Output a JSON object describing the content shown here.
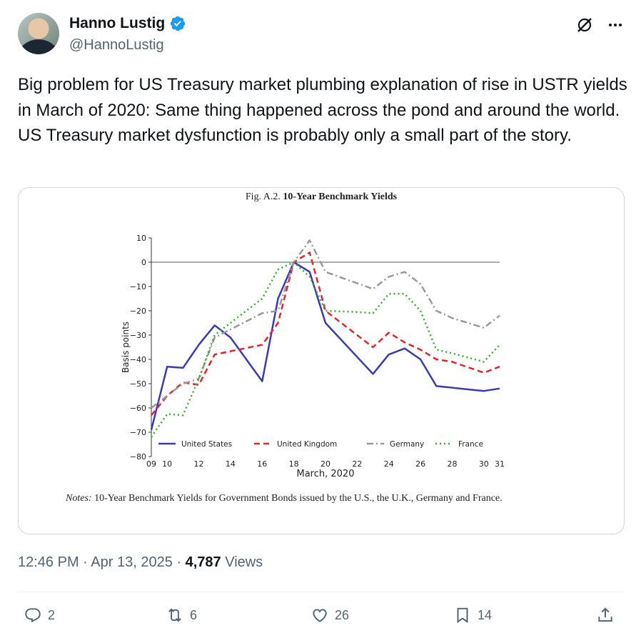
{
  "author": {
    "name": "Hanno Lustig",
    "handle": "@HannoLustig"
  },
  "tweet_text": "Big problem for US Treasury market plumbing explanation of rise in USTR yields in March of 2020: Same thing happened across the pond and around the world.  US Treasury market dysfunction is probably only a small part of the story.",
  "figure": {
    "title_prefix": "Fig. A.2.",
    "title_bold": "10-Year Benchmark Yields",
    "notes_label": "Notes:",
    "notes_text": "10-Year Benchmark Yields for Government Bonds issued by the U.S., the U.K., Germany and France."
  },
  "chart_data": {
    "type": "line",
    "xlabel": "March, 2020",
    "ylabel": "Basis points",
    "xlim": [
      9,
      31
    ],
    "ylim": [
      -80,
      10
    ],
    "x_ticks": [
      9,
      10,
      12,
      14,
      16,
      18,
      20,
      22,
      24,
      26,
      28,
      30,
      31
    ],
    "x_tick_labels": [
      "09",
      "10",
      "12",
      "14",
      "16",
      "18",
      "20",
      "22",
      "24",
      "26",
      "28",
      "30",
      "31"
    ],
    "y_ticks": [
      10,
      0,
      -10,
      -20,
      -30,
      -40,
      -50,
      -60,
      -70,
      -80
    ],
    "legend_position": "bottom",
    "series": [
      {
        "name": "United States",
        "color": "#3b3bb0",
        "dash": "solid",
        "x": [
          9,
          10,
          11,
          12,
          13,
          14,
          16,
          17,
          18,
          19,
          20,
          23,
          24,
          25,
          26,
          27,
          30,
          31
        ],
        "y": [
          -69,
          -43,
          -43.5,
          -34,
          -26,
          -31,
          -49,
          -15,
          0,
          -4,
          -25,
          -46,
          -38,
          -35.5,
          -40,
          -51,
          -53,
          -52
        ]
      },
      {
        "name": "United Kingdom",
        "color": "#e0262a",
        "dash": "dashed",
        "x": [
          9,
          10,
          11,
          12,
          13,
          16,
          17,
          18,
          19,
          20,
          23,
          24,
          25,
          26,
          27,
          28,
          30,
          31
        ],
        "y": [
          -63,
          -55,
          -49.5,
          -50.5,
          -38,
          -34,
          -25,
          0,
          4,
          -20,
          -35,
          -29,
          -33,
          -36,
          -40,
          -41,
          -45.5,
          -43
        ]
      },
      {
        "name": "Germany",
        "color": "#999999",
        "dash": "dashdot",
        "x": [
          9,
          10,
          11,
          12,
          13,
          16,
          17,
          18,
          19,
          20,
          23,
          24,
          25,
          26,
          27,
          28,
          30,
          31
        ],
        "y": [
          -60,
          -55,
          -50,
          -48,
          -31,
          -21,
          -20,
          0,
          9,
          -4,
          -11,
          -6,
          -4,
          -9,
          -20,
          -23,
          -27,
          -22
        ]
      },
      {
        "name": "France",
        "color": "#3aa832",
        "dash": "dotted",
        "x": [
          9,
          10,
          11,
          12,
          13,
          16,
          17,
          18,
          19,
          20,
          22,
          23,
          24,
          25,
          26,
          27,
          28,
          30,
          31
        ],
        "y": [
          -72,
          -62.5,
          -63,
          -48,
          -30,
          -15,
          -3,
          0,
          -6,
          -20,
          -20.5,
          -21,
          -13,
          -13,
          -20,
          -36,
          -37.5,
          -41,
          -34
        ]
      }
    ]
  },
  "meta": {
    "time": "12:46 PM",
    "sep": "·",
    "date": "Apr 13, 2025",
    "sep2": "·",
    "views_count": "4,787",
    "views_label": "Views"
  },
  "actions": {
    "replies": "2",
    "reposts": "6",
    "likes": "26",
    "bookmarks": "14"
  },
  "colors": {
    "verified": "#1d9bf0",
    "text": "#0f1419",
    "muted": "#536471",
    "border": "#cfd9de"
  }
}
